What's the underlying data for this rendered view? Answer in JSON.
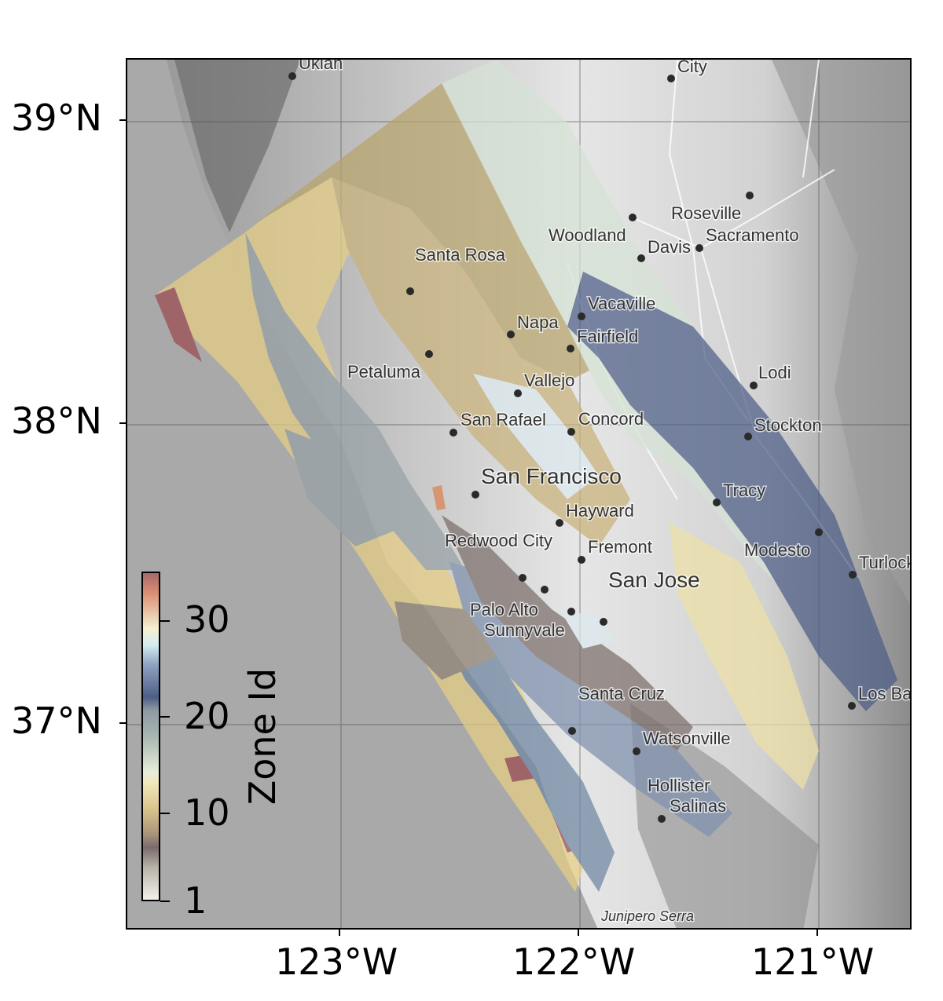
{
  "map": {
    "latitude_labels": [
      "39°N",
      "38°N",
      "37°N"
    ],
    "longitude_labels": [
      "123°W",
      "122°W",
      "121°W"
    ],
    "cities": [
      {
        "name": "Ukiah"
      },
      {
        "name": "City"
      },
      {
        "name": "Roseville"
      },
      {
        "name": "Woodland"
      },
      {
        "name": "Davis"
      },
      {
        "name": "Sacramento"
      },
      {
        "name": "Santa Rosa"
      },
      {
        "name": "Vacaville"
      },
      {
        "name": "Napa"
      },
      {
        "name": "Fairfield"
      },
      {
        "name": "Petaluma"
      },
      {
        "name": "Lodi"
      },
      {
        "name": "Vallejo"
      },
      {
        "name": "San Rafael"
      },
      {
        "name": "Concord"
      },
      {
        "name": "Stockton"
      },
      {
        "name": "San Francisco"
      },
      {
        "name": "Tracy"
      },
      {
        "name": "Hayward"
      },
      {
        "name": "Redwood City"
      },
      {
        "name": "Fremont"
      },
      {
        "name": "Modesto"
      },
      {
        "name": "Turlock"
      },
      {
        "name": "San Jose"
      },
      {
        "name": "Palo Alto"
      },
      {
        "name": "Sunnyvale"
      },
      {
        "name": "Los Banos"
      },
      {
        "name": "Santa Cruz"
      },
      {
        "name": "Watsonville"
      },
      {
        "name": "Hollister"
      },
      {
        "name": "Salinas"
      },
      {
        "name": "Junipero Serra"
      }
    ]
  },
  "colorbar": {
    "title": "Zone Id",
    "tick_labels": [
      "30",
      "20",
      "10",
      "1"
    ],
    "min": 1,
    "max": 34
  }
}
